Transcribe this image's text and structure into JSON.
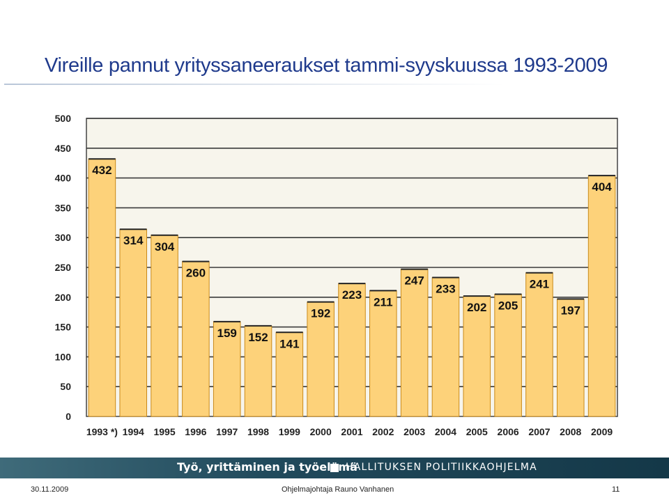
{
  "title": "Vireille pannut yrityssaneeraukset tammi-syyskuussa 1993-2009",
  "chart_data": {
    "type": "bar",
    "categories": [
      "1993 *)",
      "1994",
      "1995",
      "1996",
      "1997",
      "1998",
      "1999",
      "2000",
      "2001",
      "2002",
      "2003",
      "2004",
      "2005",
      "2006",
      "2007",
      "2008",
      "2009"
    ],
    "values": [
      432,
      314,
      304,
      260,
      159,
      152,
      141,
      192,
      223,
      211,
      247,
      233,
      202,
      205,
      241,
      197,
      404
    ],
    "data_labels": [
      "432",
      "314",
      "304",
      "260",
      "159",
      "152",
      "141",
      "192",
      "223",
      "211",
      "247",
      "233",
      "202",
      "205",
      "241",
      "197",
      "404"
    ],
    "yticks": [
      "0",
      "50",
      "100",
      "150",
      "200",
      "250",
      "300",
      "350",
      "400",
      "450",
      "500"
    ],
    "ylim": [
      0,
      500
    ],
    "grid": true,
    "bar_color": "#fdd27a",
    "bar_edge": "#c98a1a",
    "plot_bg": "#f7f5ec"
  },
  "footer": {
    "left_text": "Työ, yrittäminen ja työelämä",
    "right_text": "HALLITUKSEN POLITIIKKAOHJELMA",
    "date": "30.11.2009",
    "presenter": "Ohjelmajohtaja Rauno Vanhanen",
    "page_number": "11"
  }
}
